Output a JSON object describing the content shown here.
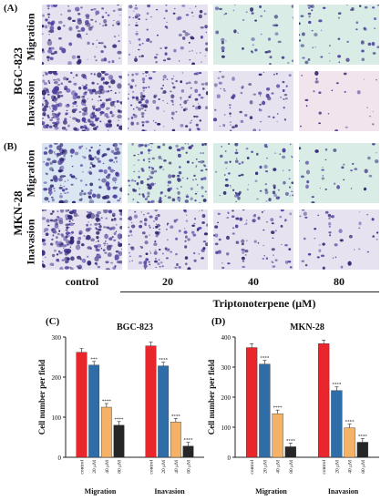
{
  "figure": {
    "panel_a": "(A)",
    "panel_b": "(B)",
    "panel_c": "(C)",
    "panel_d": "(D)",
    "rows": {
      "bgc": "BGC-823",
      "mkn": "MKN-28",
      "migration": "Migration",
      "invasion": "Inavasion"
    },
    "columns": [
      "control",
      "20",
      "40",
      "80"
    ],
    "treatment_label": "Triptonoterpene (μM)"
  },
  "micrograph_colors": {
    "stain": "#4a3a9c",
    "stain_dark": "#2c2470",
    "bg_control": "#e6e2f0",
    "bg_green": "#d9ece6",
    "bg_pink": "#f2e4ec",
    "bg_blue": "#dbe6f3"
  },
  "chart_data": [
    {
      "type": "bar",
      "title": "BGC-823",
      "ylabel": "Cell number per field",
      "ylim": [
        0,
        300
      ],
      "yticks": [
        "0",
        "100",
        "200",
        "300"
      ],
      "groups": [
        "Migration",
        "Inavasion"
      ],
      "categories": [
        "control",
        "20 μM",
        "40 μM",
        "80 μM"
      ],
      "colors": [
        "#e8262b",
        "#2f6da8",
        "#f5b266",
        "#262626"
      ],
      "series": [
        {
          "values": [
            262,
            230,
            125,
            80
          ],
          "labels": [
            "",
            "***",
            "****",
            "****"
          ]
        },
        {
          "values": [
            278,
            228,
            88,
            28
          ],
          "labels": [
            "",
            "****",
            "****",
            "****"
          ]
        }
      ]
    },
    {
      "type": "bar",
      "title": "MKN-28",
      "ylabel": "Cell number per field",
      "ylim": [
        0,
        400
      ],
      "yticks": [
        "0",
        "100",
        "200",
        "300",
        "400"
      ],
      "groups": [
        "Migration",
        "Inavasion"
      ],
      "categories": [
        "control",
        "20 μM",
        "40 μM",
        "80 μM"
      ],
      "colors": [
        "#e8262b",
        "#2f6da8",
        "#f5b266",
        "#262626"
      ],
      "series": [
        {
          "values": [
            365,
            310,
            145,
            35
          ],
          "labels": [
            "",
            "****",
            "****",
            "****"
          ]
        },
        {
          "values": [
            378,
            222,
            98,
            50
          ],
          "labels": [
            "",
            "****",
            "****",
            "****"
          ]
        }
      ]
    }
  ]
}
